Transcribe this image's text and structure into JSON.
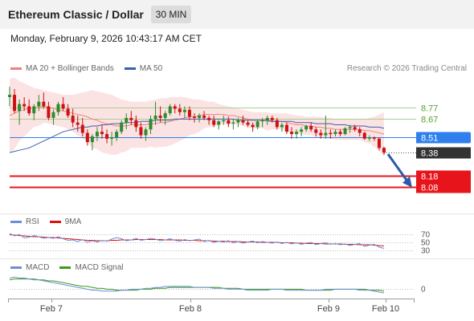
{
  "header": {
    "title": "Ethereum Classic / Dollar",
    "timeframe": "30 MIN"
  },
  "datetime": "Monday, February 9, 2026 10:43:17 AM CET",
  "legend": {
    "ma20_label": "MA 20 + Bollinger Bands",
    "ma50_label": "MA 50",
    "copyright": "Research © 2026 Trading Central",
    "ma20_color": "#f08080",
    "ma50_color": "#3b5ea8"
  },
  "chart_data": [
    {
      "type": "candlestick",
      "title": "Ethereum Classic / Dollar",
      "ylim": [
        7.88,
        9.02
      ],
      "x_ticks": [
        "Feb 7",
        "Feb 8",
        "Feb 9",
        "Feb 10"
      ],
      "ohlc": [
        [
          8.86,
          8.95,
          8.78,
          8.88
        ],
        [
          8.88,
          8.93,
          8.72,
          8.74
        ],
        [
          8.74,
          8.84,
          8.62,
          8.8
        ],
        [
          8.8,
          8.86,
          8.74,
          8.78
        ],
        [
          8.78,
          8.84,
          8.7,
          8.72
        ],
        [
          8.72,
          8.8,
          8.66,
          8.78
        ],
        [
          8.78,
          8.88,
          8.74,
          8.82
        ],
        [
          8.82,
          8.9,
          8.76,
          8.78
        ],
        [
          8.78,
          8.82,
          8.66,
          8.68
        ],
        [
          8.68,
          8.75,
          8.62,
          8.73
        ],
        [
          8.73,
          8.82,
          8.7,
          8.8
        ],
        [
          8.8,
          8.86,
          8.74,
          8.76
        ],
        [
          8.76,
          8.8,
          8.68,
          8.7
        ],
        [
          8.7,
          8.76,
          8.6,
          8.64
        ],
        [
          8.64,
          8.7,
          8.56,
          8.62
        ],
        [
          8.62,
          8.68,
          8.52,
          8.55
        ],
        [
          8.55,
          8.58,
          8.44,
          8.47
        ],
        [
          8.47,
          8.54,
          8.4,
          8.52
        ],
        [
          8.52,
          8.6,
          8.48,
          8.56
        ],
        [
          8.56,
          8.62,
          8.5,
          8.54
        ],
        [
          8.54,
          8.58,
          8.46,
          8.5
        ],
        [
          8.5,
          8.56,
          8.44,
          8.51
        ],
        [
          8.51,
          8.58,
          8.48,
          8.56
        ],
        [
          8.56,
          8.66,
          8.54,
          8.64
        ],
        [
          8.64,
          8.72,
          8.58,
          8.68
        ],
        [
          8.68,
          8.74,
          8.62,
          8.66
        ],
        [
          8.66,
          8.7,
          8.56,
          8.6
        ],
        [
          8.6,
          8.64,
          8.5,
          8.53
        ],
        [
          8.53,
          8.6,
          8.48,
          8.58
        ],
        [
          8.58,
          8.7,
          8.54,
          8.67
        ],
        [
          8.67,
          8.82,
          8.62,
          8.7
        ],
        [
          8.7,
          8.78,
          8.64,
          8.68
        ],
        [
          8.68,
          8.74,
          8.62,
          8.72
        ],
        [
          8.72,
          8.8,
          8.7,
          8.78
        ],
        [
          8.78,
          8.8,
          8.72,
          8.76
        ],
        [
          8.76,
          8.8,
          8.7,
          8.73
        ],
        [
          8.73,
          8.78,
          8.68,
          8.75
        ],
        [
          8.75,
          8.78,
          8.66,
          8.69
        ],
        [
          8.69,
          8.72,
          8.64,
          8.68
        ],
        [
          8.68,
          8.72,
          8.64,
          8.7
        ],
        [
          8.7,
          8.74,
          8.66,
          8.68
        ],
        [
          8.68,
          8.7,
          8.62,
          8.66
        ],
        [
          8.66,
          8.7,
          8.6,
          8.62
        ],
        [
          8.62,
          8.66,
          8.58,
          8.65
        ],
        [
          8.65,
          8.7,
          8.62,
          8.66
        ],
        [
          8.66,
          8.69,
          8.6,
          8.63
        ],
        [
          8.63,
          8.67,
          8.58,
          8.64
        ],
        [
          8.64,
          8.68,
          8.6,
          8.66
        ],
        [
          8.66,
          8.7,
          8.62,
          8.64
        ],
        [
          8.64,
          8.66,
          8.6,
          8.62
        ],
        [
          8.62,
          8.64,
          8.56,
          8.6
        ],
        [
          8.6,
          8.66,
          8.58,
          8.65
        ],
        [
          8.65,
          8.68,
          8.6,
          8.66
        ],
        [
          8.66,
          8.7,
          8.62,
          8.68
        ],
        [
          8.68,
          8.7,
          8.64,
          8.66
        ],
        [
          8.66,
          8.68,
          8.58,
          8.6
        ],
        [
          8.6,
          8.64,
          8.56,
          8.62
        ],
        [
          8.62,
          8.64,
          8.54,
          8.56
        ],
        [
          8.56,
          8.6,
          8.5,
          8.54
        ],
        [
          8.54,
          8.58,
          8.5,
          8.56
        ],
        [
          8.56,
          8.6,
          8.52,
          8.58
        ],
        [
          8.58,
          8.62,
          8.56,
          8.61
        ],
        [
          8.61,
          8.64,
          8.56,
          8.58
        ],
        [
          8.58,
          8.6,
          8.52,
          8.55
        ],
        [
          8.55,
          8.58,
          8.5,
          8.53
        ],
        [
          8.53,
          8.7,
          8.5,
          8.55
        ],
        [
          8.55,
          8.58,
          8.5,
          8.54
        ],
        [
          8.54,
          8.58,
          8.52,
          8.56
        ],
        [
          8.56,
          8.58,
          8.52,
          8.54
        ],
        [
          8.54,
          8.6,
          8.53,
          8.59
        ],
        [
          8.59,
          8.62,
          8.55,
          8.6
        ],
        [
          8.6,
          8.62,
          8.56,
          8.58
        ],
        [
          8.58,
          8.6,
          8.52,
          8.55
        ],
        [
          8.55,
          8.56,
          8.49,
          8.5
        ],
        [
          8.5,
          8.53,
          8.48,
          8.51
        ],
        [
          8.51,
          8.52,
          8.48,
          8.5
        ],
        [
          8.5,
          8.51,
          8.4,
          8.42
        ],
        [
          8.42,
          8.43,
          8.36,
          8.38
        ]
      ],
      "series": [
        {
          "name": "MA 20 + Bollinger Bands",
          "values": [
            8.7,
            8.72,
            8.74,
            8.75,
            8.76,
            8.77,
            8.77,
            8.78,
            8.77,
            8.76,
            8.75,
            8.74,
            8.73,
            8.72,
            8.71,
            8.7,
            8.69,
            8.67,
            8.66,
            8.64,
            8.63,
            8.62,
            8.61,
            8.61,
            8.61,
            8.62,
            8.62,
            8.62,
            8.62,
            8.63,
            8.63,
            8.64,
            8.64,
            8.65,
            8.66,
            8.67,
            8.68,
            8.69,
            8.69,
            8.7,
            8.71,
            8.71,
            8.71,
            8.71,
            8.71,
            8.7,
            8.7,
            8.69,
            8.68,
            8.67,
            8.66,
            8.66,
            8.66,
            8.65,
            8.65,
            8.65,
            8.65,
            8.64,
            8.63,
            8.62,
            8.62,
            8.61,
            8.61,
            8.6,
            8.6,
            8.59,
            8.59,
            8.58,
            8.58,
            8.58,
            8.58,
            8.58,
            8.58,
            8.57,
            8.57,
            8.56,
            8.55,
            8.54
          ]
        },
        {
          "name": "MA 50",
          "values": [
            8.38,
            8.39,
            8.4,
            8.41,
            8.42,
            8.44,
            8.46,
            8.48,
            8.5,
            8.52,
            8.54,
            8.56,
            8.57,
            8.58,
            8.59,
            8.6,
            8.6,
            8.61,
            8.61,
            8.62,
            8.62,
            8.63,
            8.63,
            8.63,
            8.64,
            8.64,
            8.64,
            8.65,
            8.65,
            8.65,
            8.66,
            8.66,
            8.66,
            8.66,
            8.67,
            8.67,
            8.67,
            8.67,
            8.67,
            8.67,
            8.67,
            8.67,
            8.67,
            8.67,
            8.67,
            8.67,
            8.67,
            8.66,
            8.66,
            8.66,
            8.66,
            8.66,
            8.66,
            8.66,
            8.65,
            8.65,
            8.65,
            8.65,
            8.65,
            8.64,
            8.64,
            8.64,
            8.64,
            8.63,
            8.63,
            8.63,
            8.63,
            8.62,
            8.62,
            8.62,
            8.61,
            8.61,
            8.61,
            8.61,
            8.6,
            8.6,
            8.6,
            8.59
          ]
        }
      ],
      "bollinger_band": {
        "upper": [
          9.02,
          9.03,
          9.0,
          8.98,
          8.96,
          8.94,
          8.93,
          8.92,
          8.91,
          8.9,
          8.89,
          8.88,
          8.88,
          8.88,
          8.89,
          8.9,
          8.91,
          8.92,
          8.91,
          8.9,
          8.89,
          8.88,
          8.86,
          8.84,
          8.83,
          8.82,
          8.82,
          8.82,
          8.82,
          8.83,
          8.84,
          8.85,
          8.85,
          8.86,
          8.86,
          8.86,
          8.86,
          8.85,
          8.84,
          8.84,
          8.83,
          8.82,
          8.82,
          8.8,
          8.79,
          8.78,
          8.77,
          8.76,
          8.75,
          8.74,
          8.73,
          8.73,
          8.73,
          8.73,
          8.72,
          8.72,
          8.72,
          8.72,
          8.71,
          8.7,
          8.7,
          8.69,
          8.69,
          8.69,
          8.69,
          8.68,
          8.68,
          8.67,
          8.67,
          8.67,
          8.67,
          8.67,
          8.67,
          8.67,
          8.68,
          8.69,
          8.71,
          8.73
        ],
        "lower": [
          8.38,
          8.41,
          8.48,
          8.52,
          8.56,
          8.6,
          8.61,
          8.64,
          8.63,
          8.62,
          8.61,
          8.6,
          8.58,
          8.56,
          8.53,
          8.5,
          8.47,
          8.42,
          8.41,
          8.38,
          8.37,
          8.36,
          8.36,
          8.38,
          8.39,
          8.42,
          8.42,
          8.42,
          8.42,
          8.43,
          8.42,
          8.43,
          8.43,
          8.44,
          8.46,
          8.48,
          8.5,
          8.53,
          8.54,
          8.56,
          8.59,
          8.6,
          8.6,
          8.62,
          8.63,
          8.62,
          8.63,
          8.62,
          8.61,
          8.6,
          8.59,
          8.59,
          8.59,
          8.57,
          8.58,
          8.58,
          8.58,
          8.56,
          8.55,
          8.54,
          8.54,
          8.53,
          8.53,
          8.51,
          8.51,
          8.5,
          8.5,
          8.49,
          8.49,
          8.49,
          8.49,
          8.49,
          8.49,
          8.47,
          8.46,
          8.43,
          8.39,
          8.35
        ]
      },
      "horizontal_levels": [
        {
          "value": 8.77,
          "label": "8.77",
          "kind": "resistance"
        },
        {
          "value": 8.67,
          "label": "8.67",
          "kind": "resistance"
        },
        {
          "value": 8.51,
          "label": "8.51",
          "kind": "pivot"
        },
        {
          "value": 8.38,
          "label": "8.38",
          "kind": "last-price"
        },
        {
          "value": 8.18,
          "label": "8.18",
          "kind": "target"
        },
        {
          "value": 8.08,
          "label": "8.08",
          "kind": "target"
        }
      ],
      "colors": {
        "up": "#2e8b2e",
        "down": "#cc1111",
        "support_line": "#a8d08d",
        "pivot": "#2f80ed",
        "target": "#e8141c",
        "last": "#333333",
        "arrow": "#2a5caa"
      }
    },
    {
      "type": "line",
      "title": "RSI",
      "ylim": [
        20,
        80
      ],
      "y_ticks": [
        70,
        50,
        30
      ],
      "series": [
        {
          "name": "RSI",
          "values": [
            72,
            66,
            70,
            61,
            63,
            67,
            64,
            60,
            62,
            60,
            64,
            59,
            55,
            56,
            52,
            57,
            50,
            54,
            51,
            55,
            53,
            58,
            62,
            59,
            54,
            56,
            60,
            55,
            57,
            60,
            58,
            54,
            56,
            59,
            55,
            53,
            57,
            54,
            56,
            58,
            52,
            55,
            50,
            53,
            51,
            54,
            49,
            52,
            48,
            51,
            53,
            49,
            52,
            50,
            48,
            51,
            47,
            50,
            46,
            49,
            45,
            48,
            50,
            44,
            47,
            49,
            45,
            47,
            44,
            46,
            42,
            45,
            47,
            40,
            43,
            45,
            38,
            35
          ]
        },
        {
          "name": "9MA",
          "values": [
            69,
            68,
            67,
            66,
            65,
            64,
            64,
            63,
            62,
            62,
            61,
            60,
            59,
            58,
            57,
            56,
            55,
            55,
            54,
            54,
            54,
            55,
            55,
            56,
            56,
            56,
            57,
            57,
            57,
            57,
            57,
            57,
            56,
            56,
            56,
            56,
            55,
            55,
            55,
            54,
            54,
            54,
            53,
            53,
            53,
            52,
            52,
            52,
            51,
            51,
            51,
            51,
            50,
            50,
            50,
            50,
            49,
            49,
            49,
            48,
            48,
            47,
            47,
            47,
            47,
            46,
            46,
            46,
            46,
            45,
            45,
            45,
            44,
            44,
            44,
            43,
            42,
            41
          ]
        }
      ]
    },
    {
      "type": "line",
      "title": "MACD",
      "y_ticks": [
        0
      ],
      "ylim": [
        -0.1,
        0.15
      ],
      "series": [
        {
          "name": "MACD",
          "values": [
            0.12,
            0.13,
            0.12,
            0.12,
            0.11,
            0.1,
            0.1,
            0.09,
            0.08,
            0.07,
            0.06,
            0.05,
            0.04,
            0.03,
            0.02,
            0.01,
            0.0,
            -0.01,
            -0.01,
            -0.02,
            -0.02,
            -0.02,
            -0.02,
            -0.01,
            -0.01,
            0.0,
            0.0,
            0.0,
            0.01,
            0.01,
            0.02,
            0.02,
            0.03,
            0.03,
            0.03,
            0.03,
            0.03,
            0.03,
            0.02,
            0.02,
            0.02,
            0.02,
            0.01,
            0.01,
            0.01,
            0.0,
            0.0,
            0.0,
            0.0,
            -0.01,
            -0.01,
            -0.01,
            -0.01,
            -0.01,
            0.0,
            0.0,
            0.0,
            -0.01,
            -0.01,
            -0.01,
            -0.01,
            -0.01,
            -0.01,
            -0.01,
            -0.01,
            0.0,
            0.0,
            0.0,
            0.0,
            0.0,
            0.0,
            0.0,
            -0.01,
            -0.01,
            -0.01,
            -0.02,
            -0.03,
            -0.04
          ]
        },
        {
          "name": "MACD Signal",
          "values": [
            0.1,
            0.11,
            0.11,
            0.11,
            0.11,
            0.11,
            0.1,
            0.1,
            0.09,
            0.09,
            0.08,
            0.07,
            0.06,
            0.05,
            0.04,
            0.03,
            0.03,
            0.02,
            0.01,
            0.01,
            0.0,
            0.0,
            -0.01,
            -0.01,
            -0.01,
            -0.01,
            -0.01,
            0.0,
            0.0,
            0.0,
            0.01,
            0.01,
            0.01,
            0.02,
            0.02,
            0.02,
            0.02,
            0.02,
            0.02,
            0.02,
            0.02,
            0.02,
            0.02,
            0.02,
            0.01,
            0.01,
            0.01,
            0.01,
            0.0,
            0.0,
            0.0,
            0.0,
            0.0,
            0.0,
            0.0,
            0.0,
            0.0,
            0.0,
            0.0,
            0.0,
            0.0,
            -0.01,
            -0.01,
            -0.01,
            -0.01,
            -0.01,
            -0.01,
            0.0,
            0.0,
            0.0,
            0.0,
            0.0,
            0.0,
            0.0,
            -0.01,
            -0.01,
            -0.01,
            -0.02
          ]
        }
      ]
    }
  ],
  "rsi_legend": {
    "rsi_label": "RSI",
    "ma_label": "9MA",
    "rsi_color": "#6b8fd6",
    "ma_color": "#e01010"
  },
  "macd_legend": {
    "macd_label": "MACD",
    "signal_label": "MACD Signal",
    "macd_color": "#6b8fd6",
    "signal_color": "#3a9a1a"
  }
}
